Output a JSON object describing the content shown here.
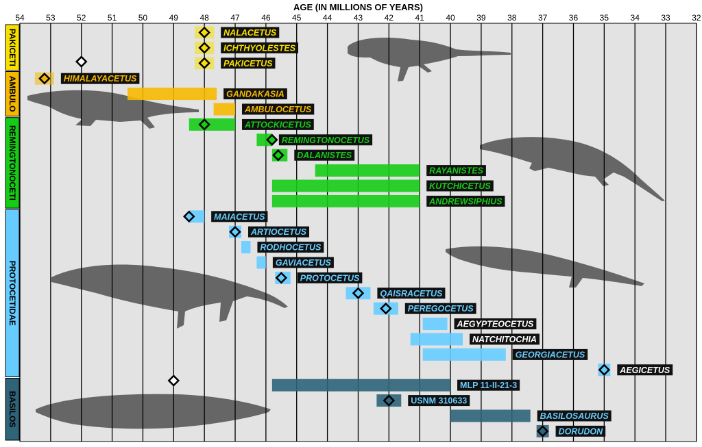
{
  "chart_data": {
    "type": "timeline-range",
    "xlabel": "AGE (IN MILLIONS OF YEARS)",
    "x_ticks": [
      54,
      53,
      52,
      51,
      50,
      49,
      48,
      47,
      46,
      45,
      44,
      43,
      42,
      41,
      40,
      39,
      38,
      37,
      36,
      35,
      34,
      33,
      32
    ],
    "xlim": [
      54,
      32
    ],
    "x_reversed": true,
    "grid": true,
    "colors": {
      "pakiceti": "#f7e000",
      "ambulo": "#f5b800",
      "remington": "#16cc16",
      "protocetidae": "#66ccff",
      "basilos": "#2e6378",
      "background": "#e3e3e3",
      "label_bg": "#111111"
    },
    "groups": [
      {
        "name": "PAKICETI",
        "color_key": "pakiceti",
        "first_row": 0,
        "last_row": 2
      },
      {
        "name": "AMBULO",
        "color_key": "ambulo",
        "first_row": 3,
        "last_row": 5
      },
      {
        "name": "REMINGTONOCETI",
        "color_key": "remington",
        "first_row": 6,
        "last_row": 11
      },
      {
        "name": "PROTOCETIDAE",
        "color_key": "protocetidae",
        "first_row": 12,
        "last_row": 22
      },
      {
        "name": "BASILOS",
        "color_key": "basilos",
        "first_row": 23,
        "last_row": 26
      }
    ],
    "taxa": [
      {
        "name": "NALACETUS",
        "group": "pakiceti",
        "start": 48,
        "end": 48,
        "point": 48,
        "label_color": "#f7e000"
      },
      {
        "name": "ICHTHYOLESTES",
        "group": "pakiceti",
        "start": 48,
        "end": 48,
        "point": 48,
        "label_color": "#f7e000"
      },
      {
        "name": "PAKICETUS",
        "group": "pakiceti",
        "start": 48,
        "end": 48,
        "point": 48,
        "label_color": "#f7e000"
      },
      {
        "name": "HIMALAYACETUS",
        "group": "ambulo",
        "start": 53.2,
        "end": 53.2,
        "point": 53.2,
        "label_color": "#f5b800"
      },
      {
        "name": "GANDAKASIA",
        "group": "ambulo",
        "start": 50.5,
        "end": 47.6,
        "point": null,
        "label_color": "#f5b800"
      },
      {
        "name": "AMBULOCETUS",
        "group": "ambulo",
        "start": 47.7,
        "end": 47,
        "point": null,
        "label_color": "#f5b800"
      },
      {
        "name": "ATTOCKICETUS",
        "group": "remington",
        "start": 48.5,
        "end": 47,
        "point": 48,
        "label_color": "#16cc16"
      },
      {
        "name": "REMINGTONOCETUS",
        "group": "remington",
        "start": 46.3,
        "end": 45.8,
        "point": 45.8,
        "label_color": "#16cc16"
      },
      {
        "name": "DALANISTES",
        "group": "remington",
        "start": 45.8,
        "end": 45.3,
        "point": 45.6,
        "label_color": "#16cc16"
      },
      {
        "name": "RAYANISTES",
        "group": "remington",
        "start": 44.4,
        "end": 41,
        "point": null,
        "label_color": "#16cc16"
      },
      {
        "name": "KUTCHICETUS",
        "group": "remington",
        "start": 45.8,
        "end": 41,
        "point": null,
        "label_color": "#16cc16"
      },
      {
        "name": "ANDREWSIPHIUS",
        "group": "remington",
        "start": 45.8,
        "end": 41,
        "point": null,
        "label_color": "#16cc16"
      },
      {
        "name": "MAIACETUS",
        "group": "protocetidae",
        "start": 48.5,
        "end": 48,
        "point": 48.5,
        "label_color": "#66ccff"
      },
      {
        "name": "ARTIOCETUS",
        "group": "protocetidae",
        "start": 47.2,
        "end": 46.8,
        "point": 47,
        "label_color": "#66ccff"
      },
      {
        "name": "RODHOCETUS",
        "group": "protocetidae",
        "start": 46.8,
        "end": 46.5,
        "point": null,
        "label_color": "#66ccff"
      },
      {
        "name": "GAVIACETUS",
        "group": "protocetidae",
        "start": 46.3,
        "end": 46,
        "point": null,
        "label_color": "#66ccff"
      },
      {
        "name": "PROTOCETUS",
        "group": "protocetidae",
        "start": 45.7,
        "end": 45.2,
        "point": 45.5,
        "label_color": "#66ccff"
      },
      {
        "name": "QAISRACETUS",
        "group": "protocetidae",
        "start": 43.4,
        "end": 42.6,
        "point": 43,
        "label_color": "#66ccff"
      },
      {
        "name": "PEREGOCETUS",
        "group": "protocetidae",
        "start": 42.5,
        "end": 41.7,
        "point": 42.1,
        "label_color": "#66ccff"
      },
      {
        "name": "AEGYPTEOCETUS",
        "group": "protocetidae",
        "start": 40.9,
        "end": 40.1,
        "point": null,
        "label_color": "#ffffff"
      },
      {
        "name": "NATCHITOCHIA",
        "group": "protocetidae",
        "start": 41.3,
        "end": 39.6,
        "point": null,
        "label_color": "#ffffff"
      },
      {
        "name": "GEORGIACETUS",
        "group": "protocetidae",
        "start": 40.9,
        "end": 38.2,
        "point": null,
        "label_color": "#66ccff"
      },
      {
        "name": "AEGICETUS",
        "group": "protocetidae",
        "start": 35.2,
        "end": 34.8,
        "point": 35,
        "label_color": "#ffffff"
      },
      {
        "name": "MLP 11-II-21-3",
        "group": "basilos",
        "start": 45.8,
        "end": 40,
        "point": null,
        "label_color": "#66ccff",
        "upright": true
      },
      {
        "name": "USNM 310633",
        "group": "basilos",
        "start": 42.4,
        "end": 41.6,
        "point": 42,
        "label_color": "#66ccff",
        "upright": true
      },
      {
        "name": "BASILOSAURUS",
        "group": "basilos",
        "start": 40,
        "end": 37.4,
        "point": null,
        "label_color": "#66ccff"
      },
      {
        "name": "DORUDON",
        "group": "basilos",
        "start": 37.2,
        "end": 36.8,
        "point": 37,
        "label_color": "#66ccff"
      }
    ],
    "open_markers": [
      {
        "age": 52,
        "row": 1.9
      },
      {
        "age": 49,
        "row": 22.7
      }
    ]
  }
}
